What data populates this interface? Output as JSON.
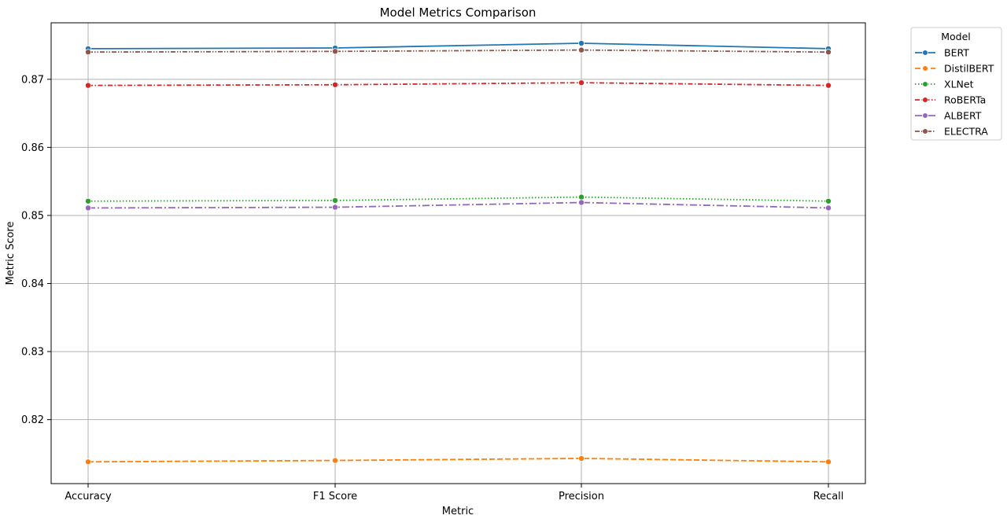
{
  "chart_data": {
    "type": "line",
    "title": "Model Metrics Comparison",
    "xlabel": "Metric",
    "ylabel": "Metric Score",
    "categories": [
      "Accuracy",
      "F1 Score",
      "Precision",
      "Recall"
    ],
    "ylim": [
      0.8106,
      0.8783
    ],
    "yticks": [
      0.82,
      0.83,
      0.84,
      0.85,
      0.86,
      0.87
    ],
    "grid": true,
    "legend": {
      "title": "Model",
      "placement": "outside top-right"
    },
    "series": [
      {
        "name": "BERT",
        "color": "#1f77b4",
        "dash": "solid",
        "values": [
          0.8745,
          0.8746,
          0.8753,
          0.8745
        ]
      },
      {
        "name": "DistilBERT",
        "color": "#ff7f0e",
        "dash": "dashed",
        "values": [
          0.8138,
          0.814,
          0.8143,
          0.8138
        ]
      },
      {
        "name": "XLNet",
        "color": "#2ca02c",
        "dash": "dotted",
        "values": [
          0.8521,
          0.8522,
          0.8527,
          0.8521
        ]
      },
      {
        "name": "RoBERTa",
        "color": "#d62728",
        "dash": "dashdot",
        "values": [
          0.8691,
          0.8692,
          0.8695,
          0.8691
        ]
      },
      {
        "name": "ALBERT",
        "color": "#9467bd",
        "dash": "longdashdot",
        "values": [
          0.8511,
          0.8512,
          0.8519,
          0.8511
        ]
      },
      {
        "name": "ELECTRA",
        "color": "#8c564b",
        "dash": "dashdotdot",
        "values": [
          0.874,
          0.8741,
          0.8743,
          0.874
        ]
      }
    ]
  }
}
